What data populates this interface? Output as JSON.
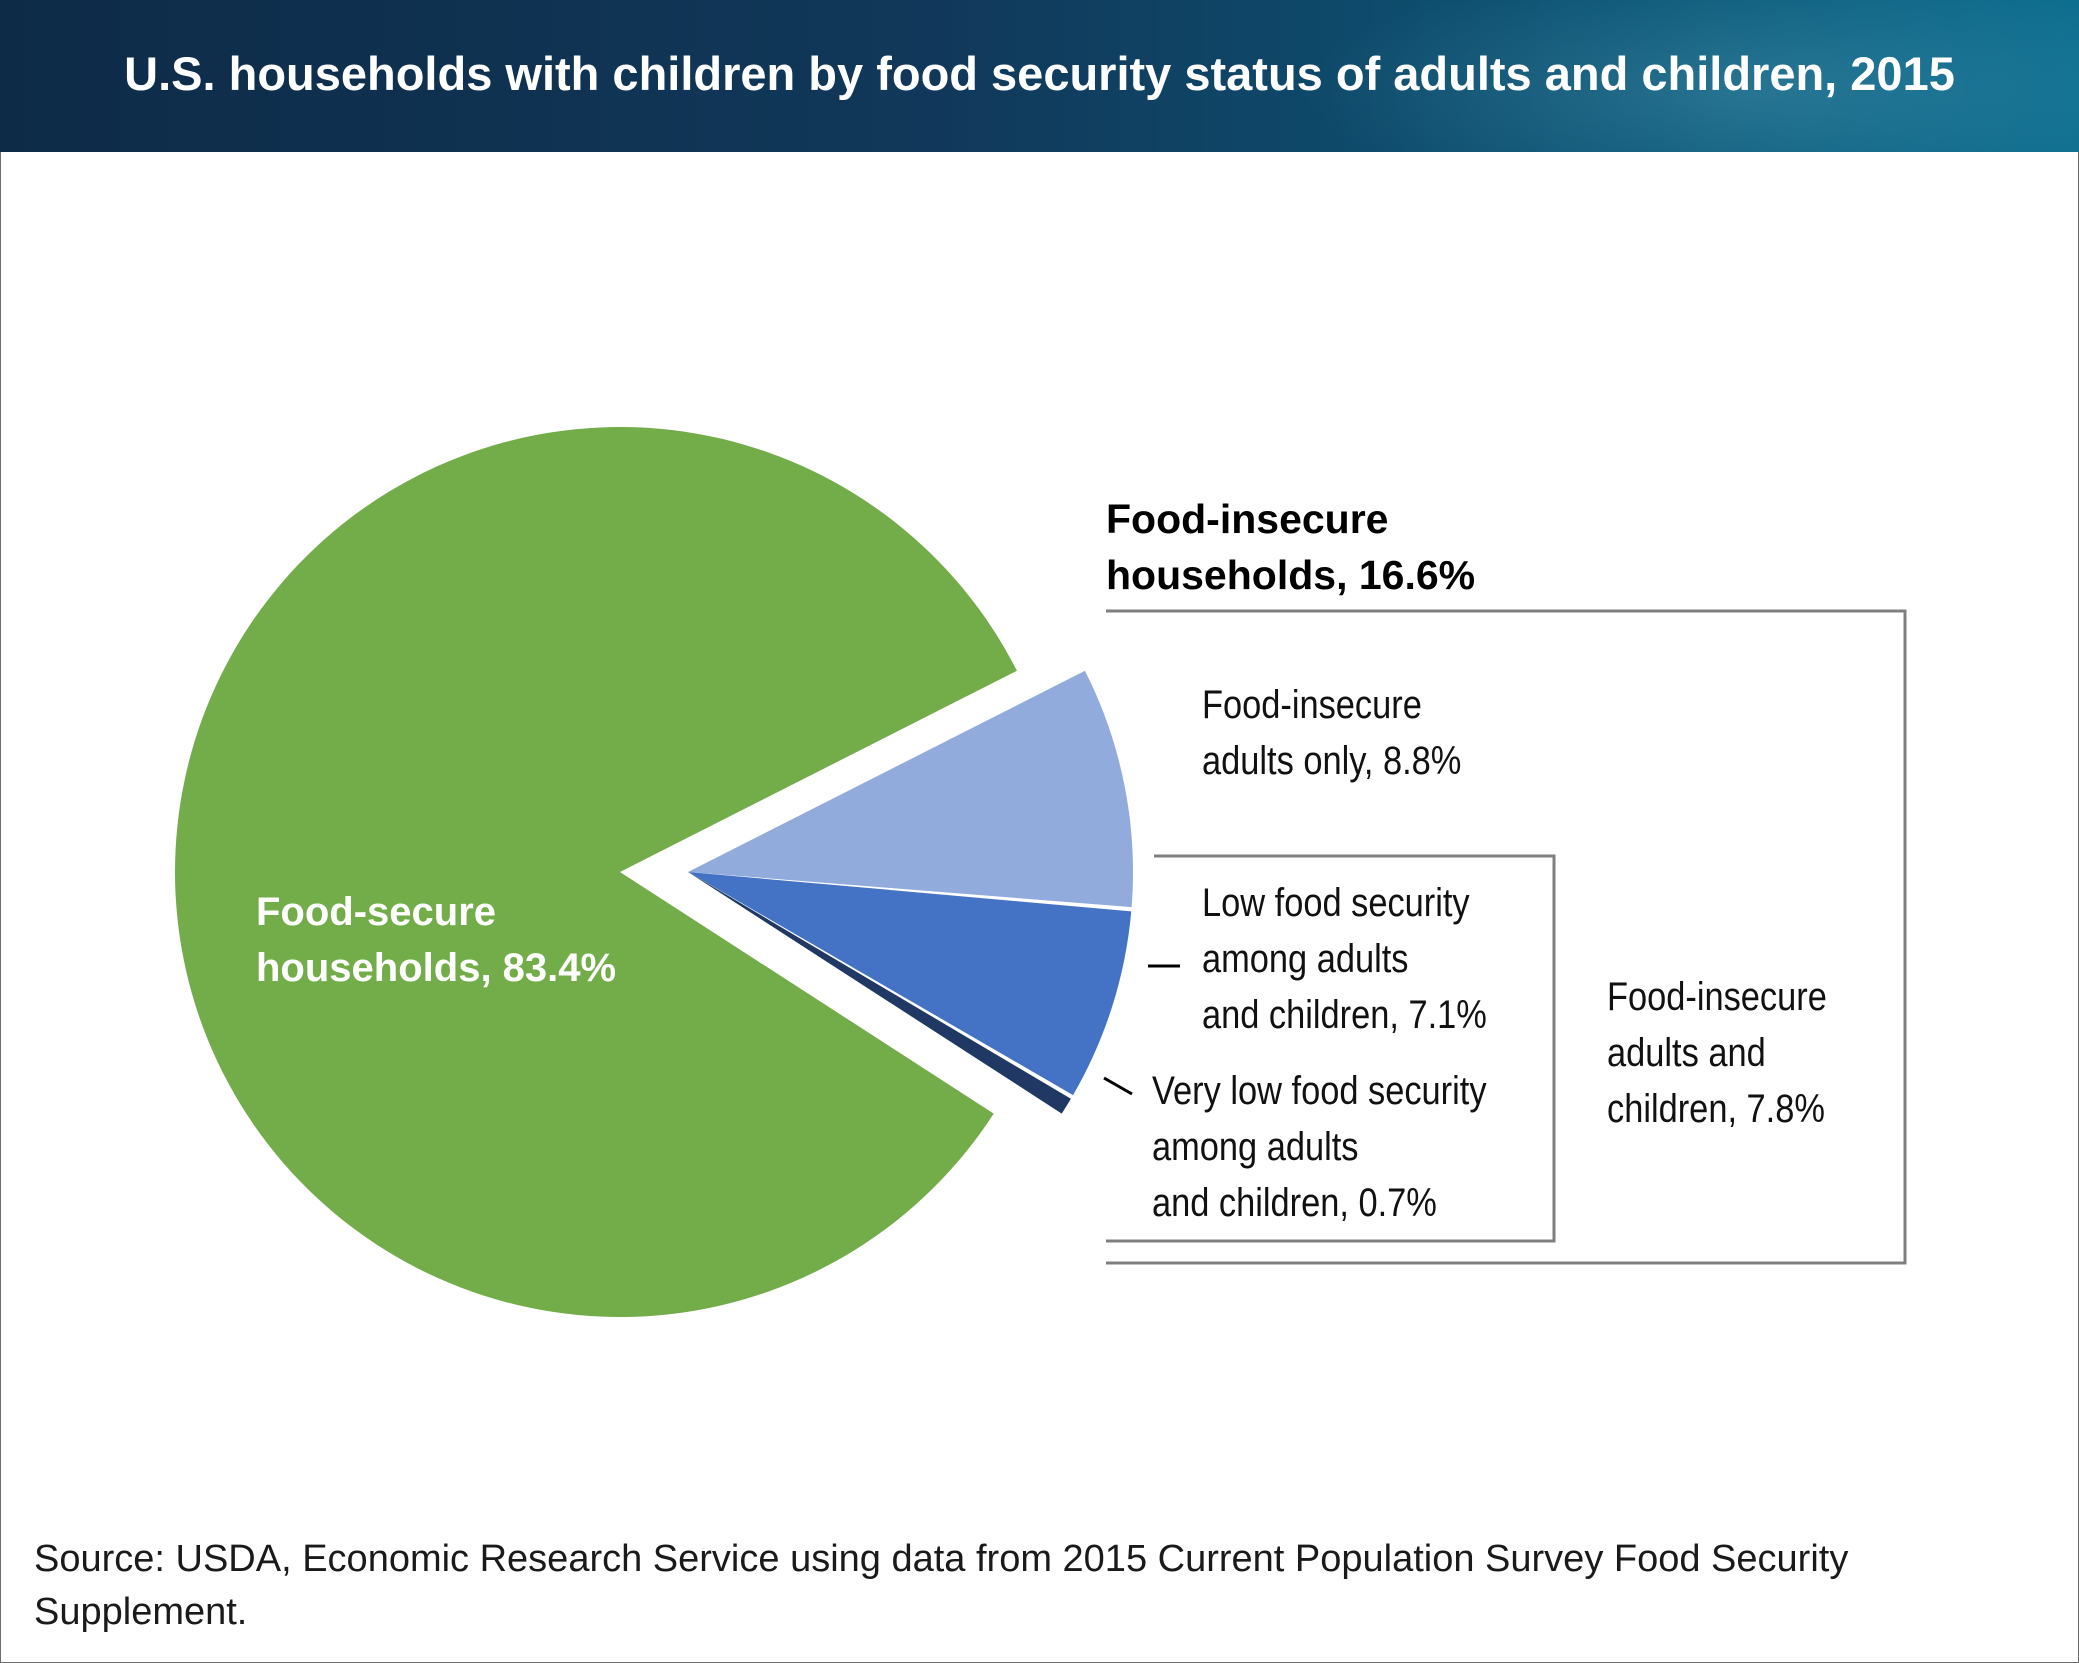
{
  "title": "U.S. households with children by food security status of adults and children, 2015",
  "source": "Source: USDA, Economic Research Service using data from 2015 Current Population Survey Food Security Supplement.",
  "colors": {
    "food_secure": "#72ad4a",
    "adults_only": "#91acdc",
    "low_security": "#4472c4",
    "very_low_security": "#1f3864",
    "bracket": "#7f7f7f"
  },
  "chart_data": {
    "type": "pie",
    "title": "U.S. households with children by food security status of adults and children, 2015",
    "unit": "%",
    "slices": [
      {
        "name": "Food-secure households",
        "value": 83.4,
        "label_lines": [
          "Food-secure",
          "households, 83.4%"
        ]
      },
      {
        "name": "Food-insecure adults only",
        "value": 8.8,
        "label_lines": [
          "Food-insecure",
          "adults only, 8.8%"
        ]
      },
      {
        "name": "Low food security among adults and children",
        "value": 7.1,
        "label_lines": [
          "Low food security",
          "among adults",
          "and children, 7.1%"
        ]
      },
      {
        "name": "Very low food security among adults and children",
        "value": 0.7,
        "label_lines": [
          "Very low food security",
          "among adults",
          "and children, 0.7%"
        ]
      }
    ],
    "groups": [
      {
        "name": "Food-insecure households",
        "value": 16.6,
        "label_lines": [
          "Food-insecure",
          "households, 16.6%"
        ]
      },
      {
        "name": "Food-insecure adults and children",
        "value": 7.8,
        "label_lines": [
          "Food-insecure",
          "adults and",
          "children, 7.8%"
        ]
      }
    ]
  }
}
